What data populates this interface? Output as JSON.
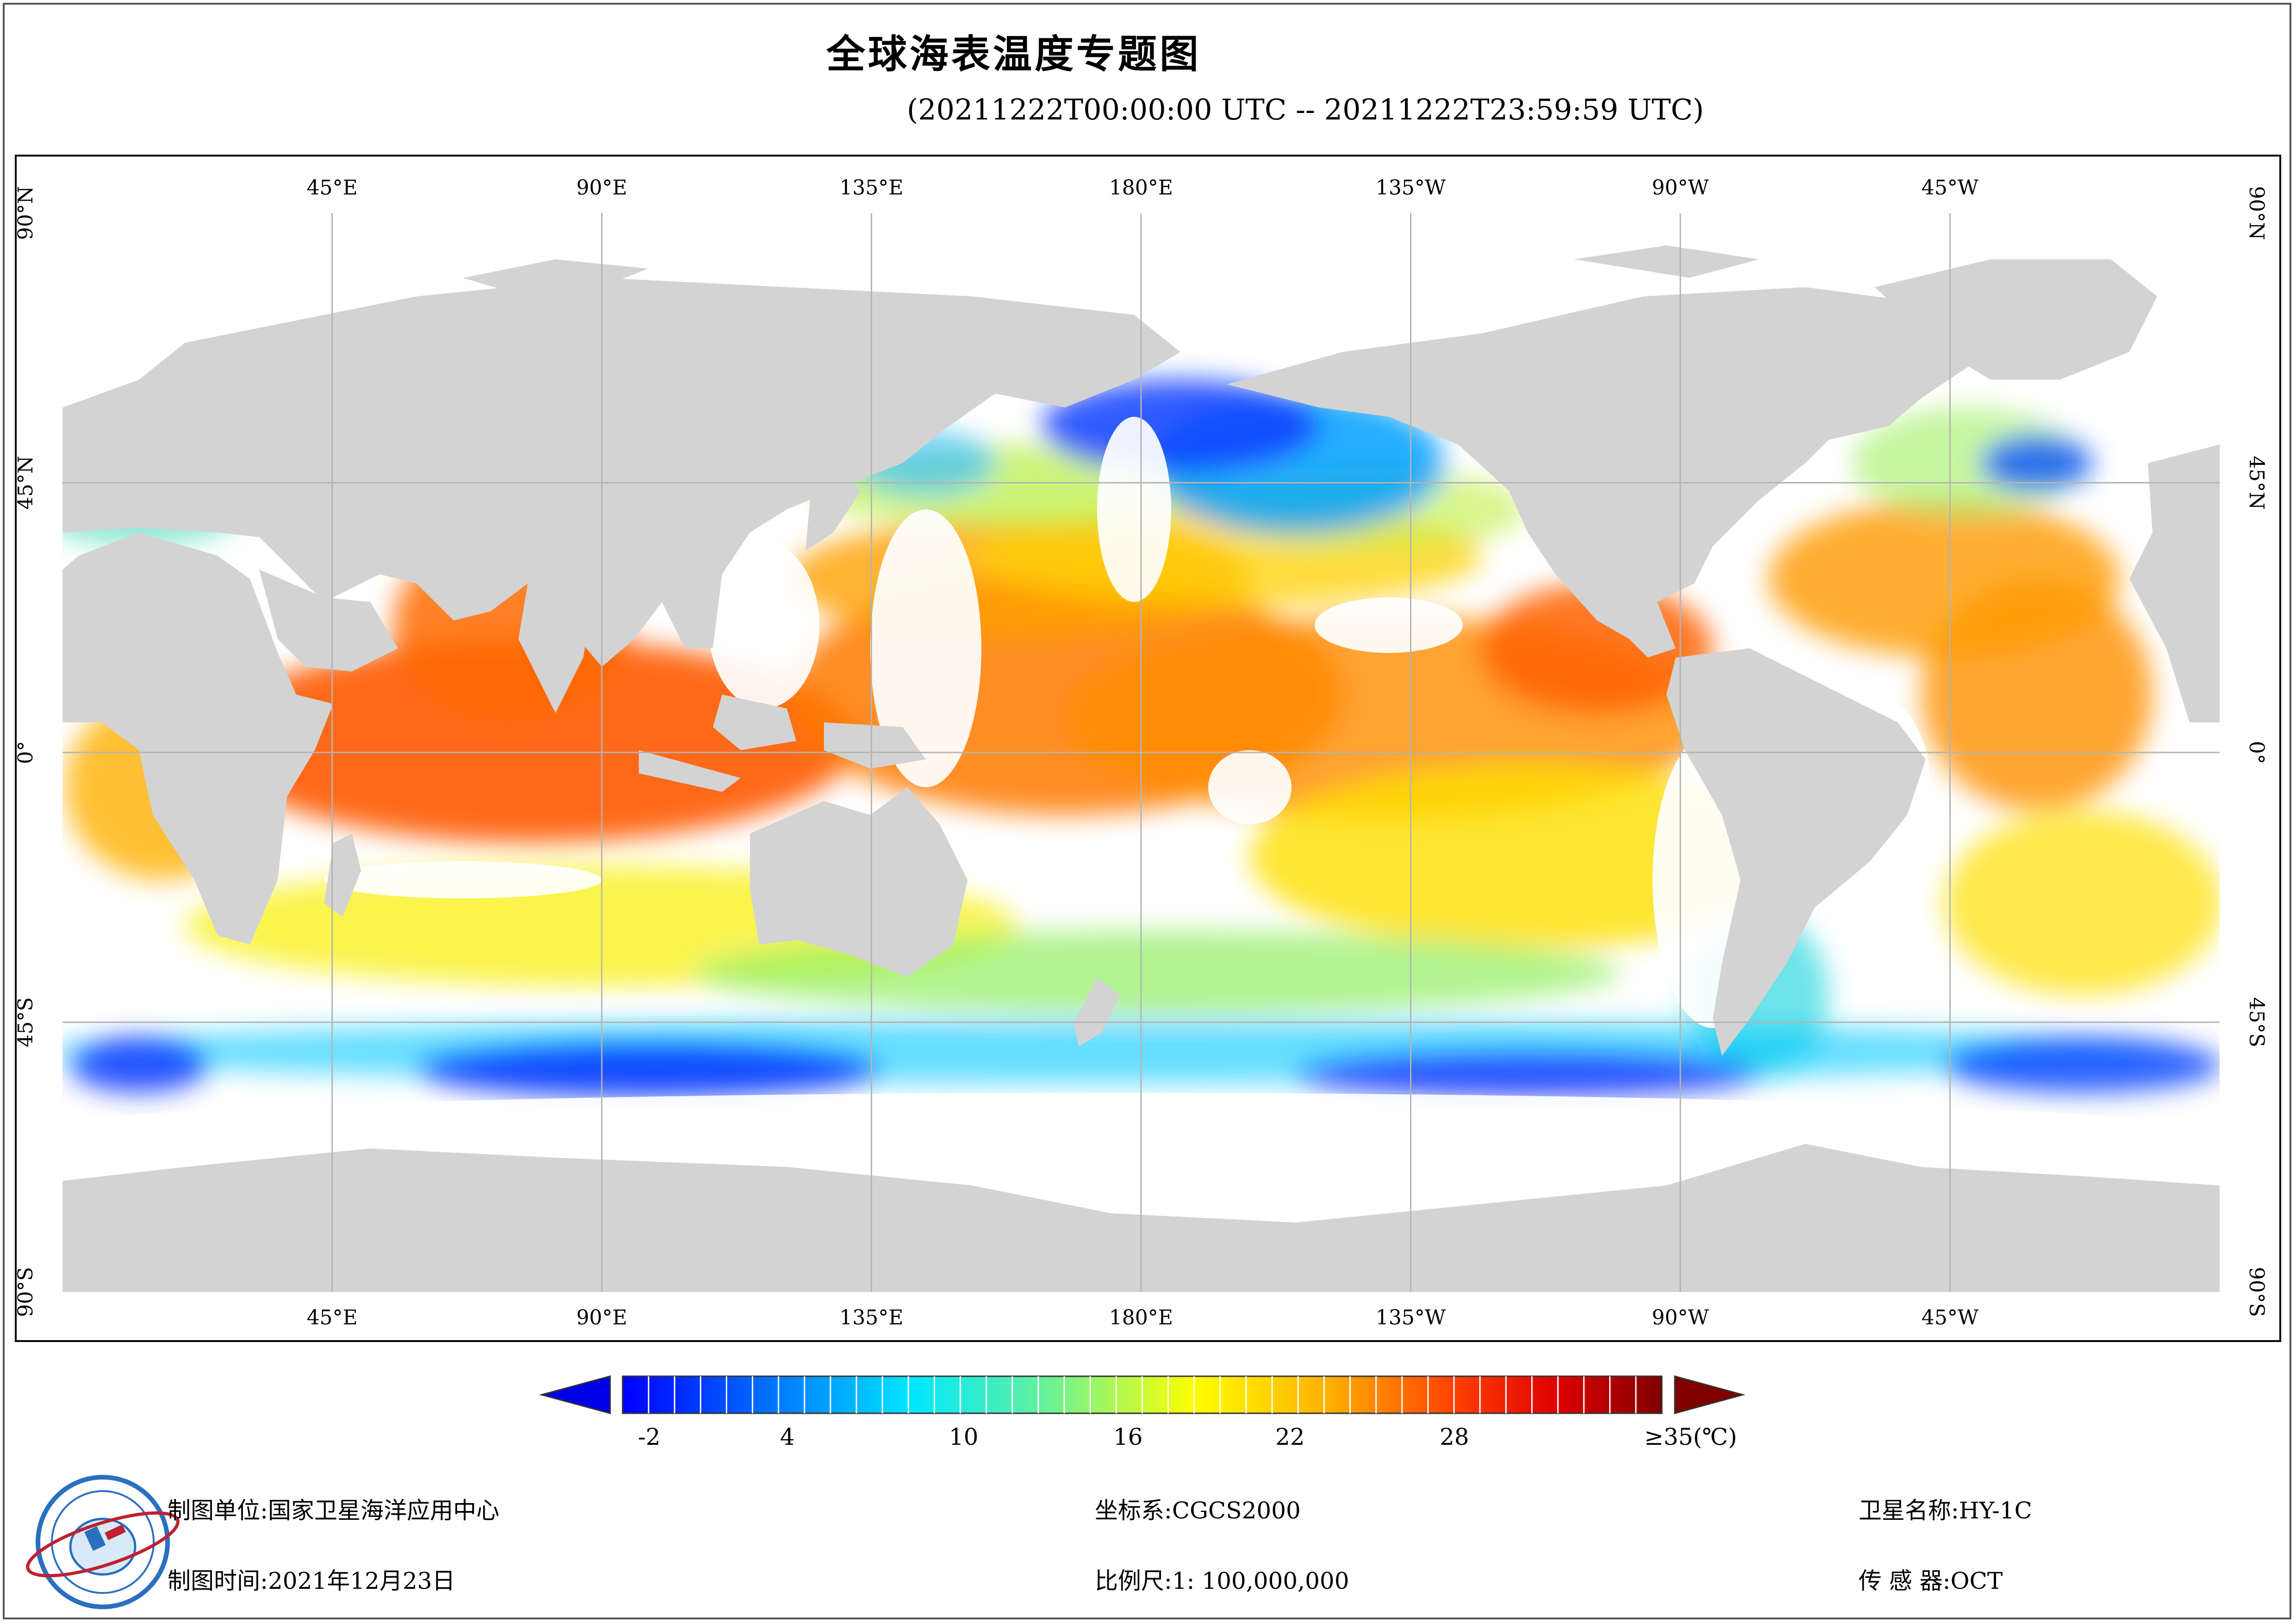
{
  "title": "全球海表温度专题图",
  "subtitle": "(20211222T00:00:00 UTC -- 20211222T23:59:59 UTC)",
  "map": {
    "lon_labels": [
      "45°E",
      "90°E",
      "135°E",
      "180°E",
      "135°W",
      "90°W",
      "45°W"
    ],
    "lat_labels": [
      "90°N",
      "45°N",
      "0°",
      "45°S",
      "90°S"
    ],
    "projection_center_lon": 180,
    "colors": {
      "land": "#d3d3d3",
      "no_data": "#ffffff",
      "graticule": "#b4b4b4"
    }
  },
  "colorbar": {
    "tick_labels": [
      "-2",
      "4",
      "10",
      "16",
      "22",
      "28",
      "≥35(℃)"
    ],
    "min": -2,
    "max": 35,
    "colors": [
      "#0000ff",
      "#0080ff",
      "#00e0ff",
      "#40f0c0",
      "#a0f060",
      "#ffff00",
      "#ffc000",
      "#ff8000",
      "#ff3000",
      "#d00000",
      "#800000"
    ]
  },
  "footer": {
    "org_label": "制图单位:",
    "org_value": "国家卫星海洋应用中心",
    "time_label": "制图时间:",
    "time_value": "2021年12月23日",
    "crs_label": "坐标系:",
    "crs_value": "CGCS2000",
    "scale_label": "比例尺:",
    "scale_value": "1: 100,000,000",
    "satellite_label": "卫星名称:",
    "satellite_value": "HY-1C",
    "sensor_label": "传 感 器:",
    "sensor_value": "OCT"
  },
  "logo": {
    "icon": "nsoas-logo-icon"
  }
}
